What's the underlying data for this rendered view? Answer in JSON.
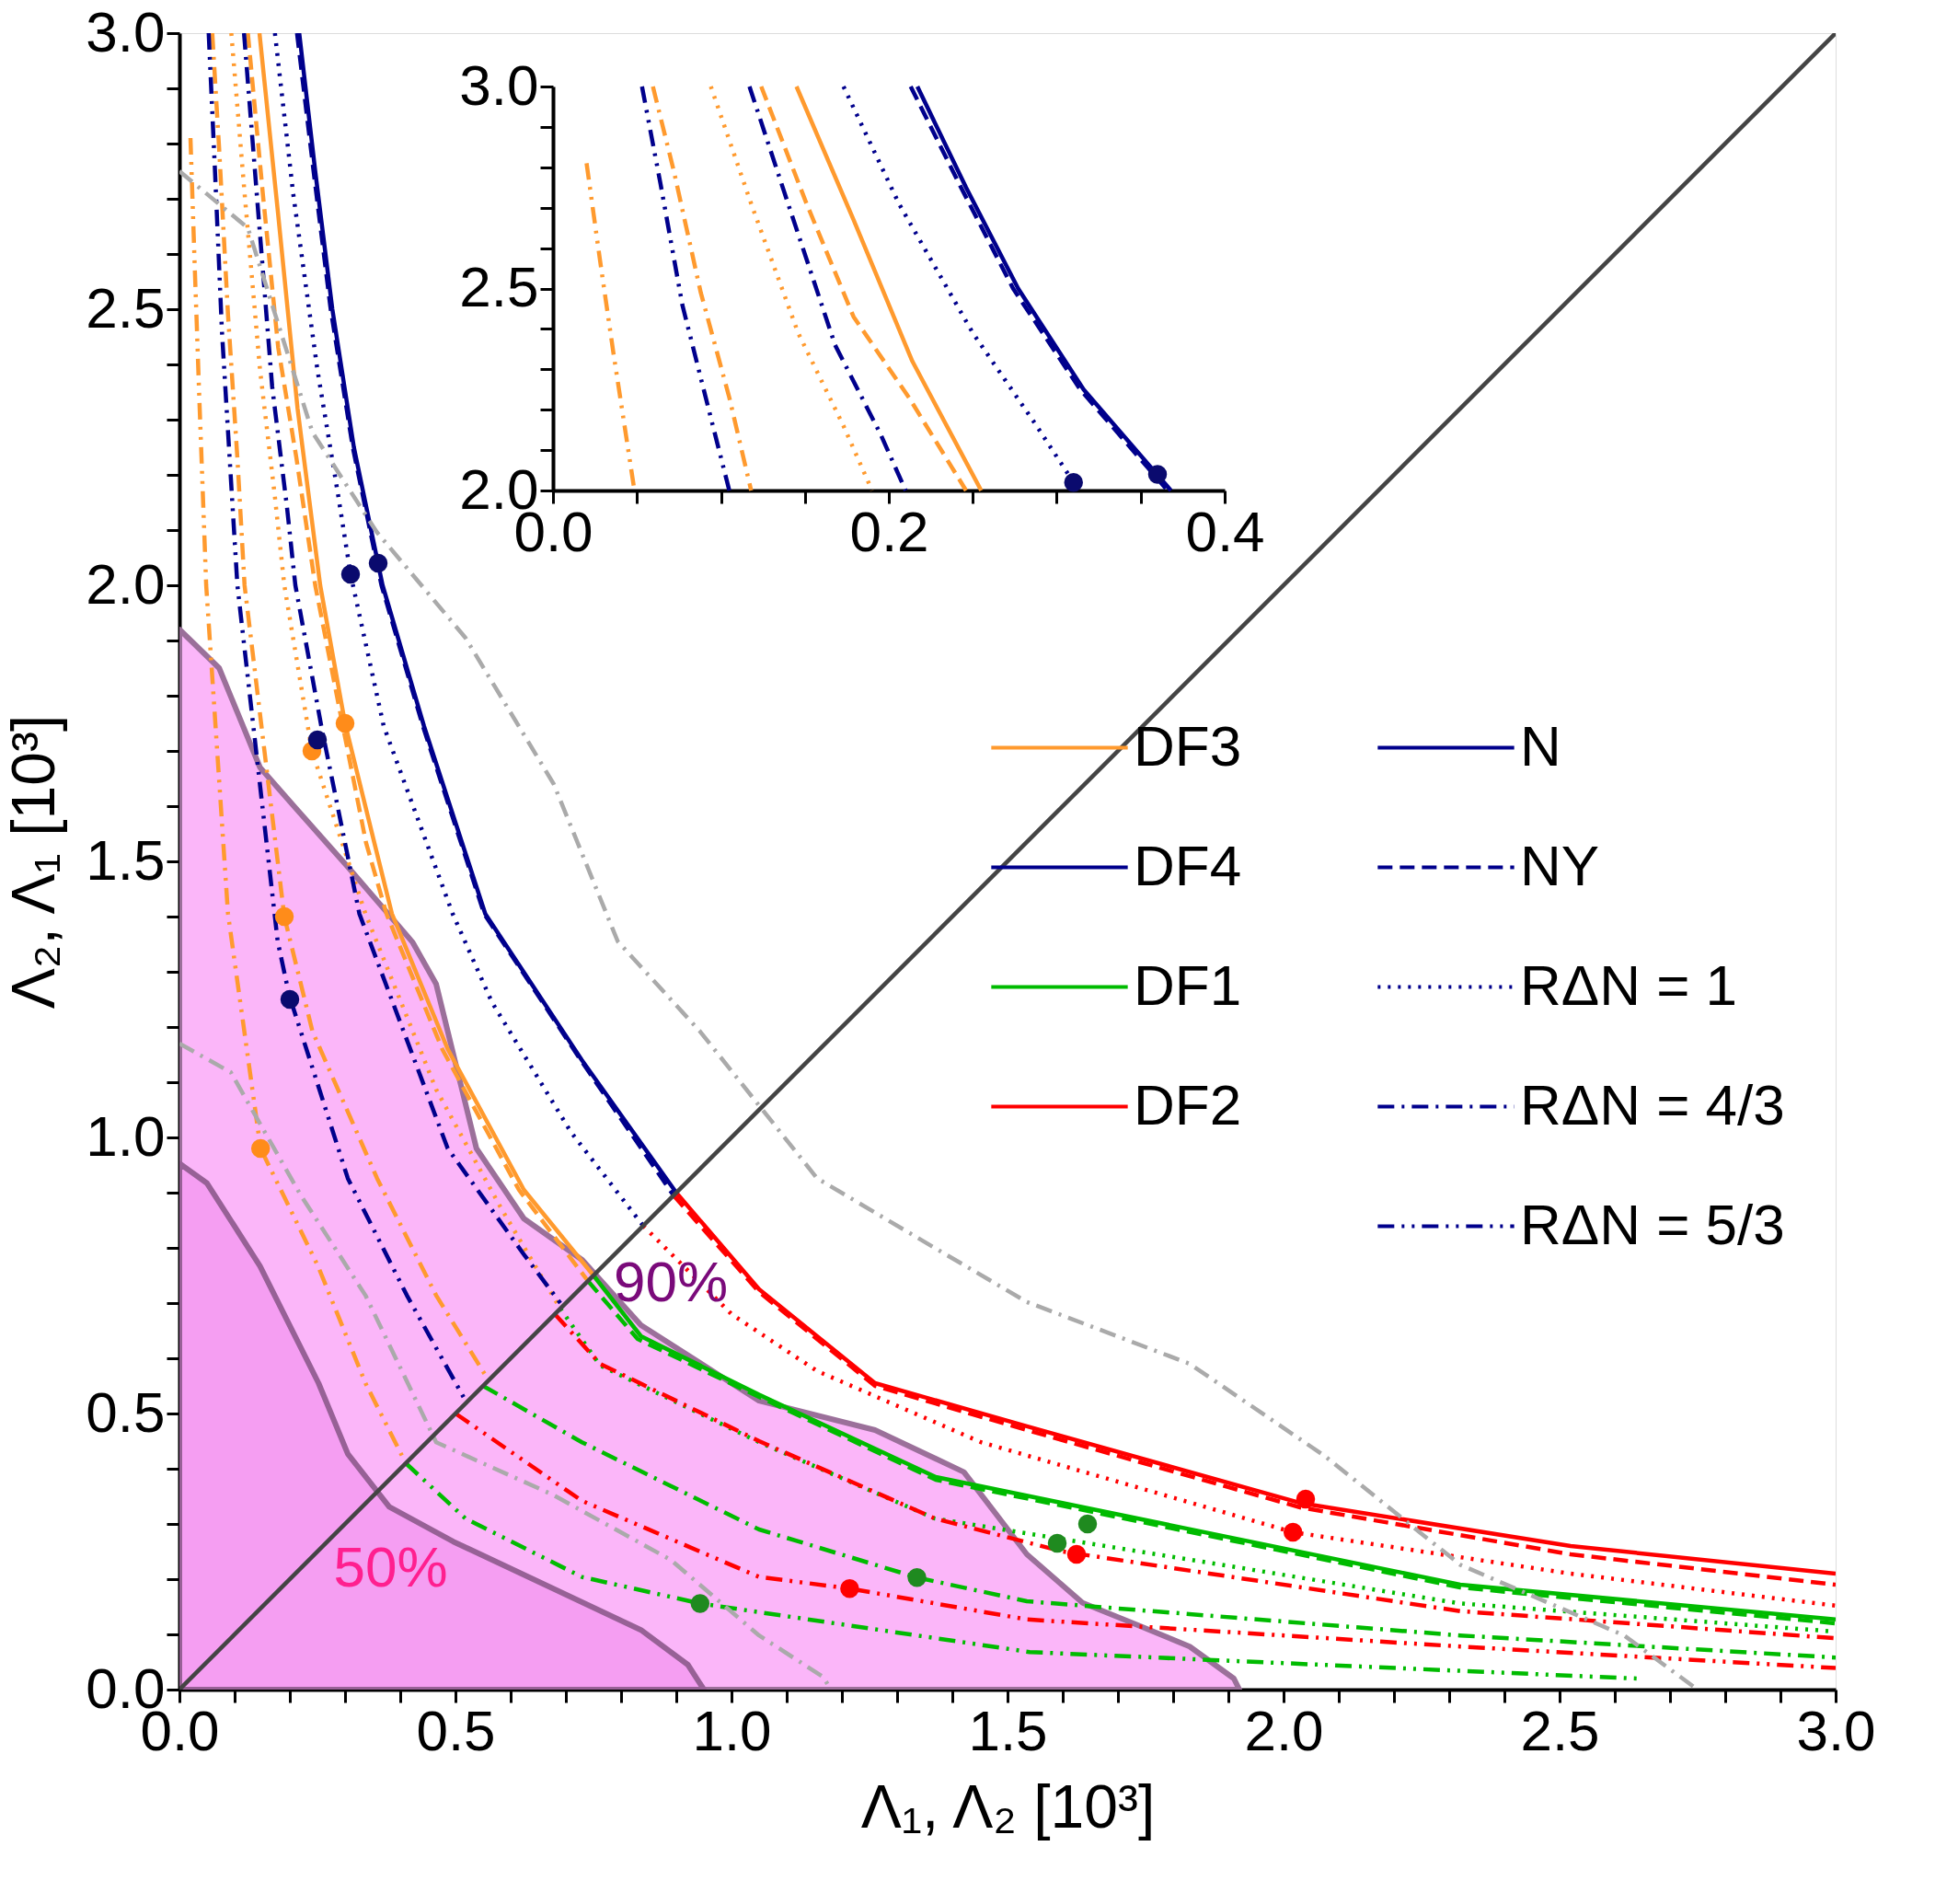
{
  "chart_data": [
    {
      "type": "line",
      "xlabel": "Λ₁, Λ₂ [10³]",
      "ylabel": "Λ₂, Λ₁ [10³]",
      "legend": "center",
      "xlim": [
        0,
        3
      ],
      "ylim": [
        0,
        3
      ],
      "xticks": [
        {
          "value": 0,
          "label": "0.0"
        },
        {
          "value": 0.1,
          "label": null
        },
        {
          "value": 0.2,
          "label": null
        },
        {
          "value": 0.3,
          "label": null
        },
        {
          "value": 0.4,
          "label": null
        },
        0.5,
        {
          "value": 0.6,
          "label": null
        },
        {
          "value": 0.7,
          "label": null
        },
        {
          "value": 0.8,
          "label": null
        },
        {
          "value": 0.9,
          "label": null
        },
        {
          "value": 1,
          "label": "1.0"
        },
        {
          "value": 1.1,
          "label": null
        },
        {
          "value": 1.2,
          "label": null
        },
        {
          "value": 1.3,
          "label": null
        },
        {
          "value": 1.4,
          "label": null
        },
        1.5,
        {
          "value": 1.6,
          "label": null
        },
        {
          "value": 1.7,
          "label": null
        },
        {
          "value": 1.8,
          "label": null
        },
        {
          "value": 1.9,
          "label": null
        },
        {
          "value": 2,
          "label": "2.0"
        },
        {
          "value": 2.1,
          "label": null
        },
        {
          "value": 2.2,
          "label": null
        },
        {
          "value": 2.3,
          "label": null
        },
        {
          "value": 2.4,
          "label": null
        },
        2.5,
        {
          "value": 2.6,
          "label": null
        },
        {
          "value": 2.7,
          "label": null
        },
        {
          "value": 2.8,
          "label": null
        },
        {
          "value": 2.9,
          "label": null
        },
        {
          "value": 3,
          "label": "3.0"
        }
      ],
      "yticks": [
        {
          "value": 0,
          "label": "0.0"
        },
        {
          "value": 0.1,
          "label": null
        },
        {
          "value": 0.2,
          "label": null
        },
        {
          "value": 0.3,
          "label": null
        },
        {
          "value": 0.4,
          "label": null
        },
        0.5,
        {
          "value": 0.6,
          "label": null
        },
        {
          "value": 0.7,
          "label": null
        },
        {
          "value": 0.8,
          "label": null
        },
        {
          "value": 0.9,
          "label": null
        },
        {
          "value": 1,
          "label": "1.0"
        },
        {
          "value": 1.1,
          "label": null
        },
        {
          "value": 1.2,
          "label": null
        },
        {
          "value": 1.3,
          "label": null
        },
        {
          "value": 1.4,
          "label": null
        },
        1.5,
        {
          "value": 1.6,
          "label": null
        },
        {
          "value": 1.7,
          "label": null
        },
        {
          "value": 1.8,
          "label": null
        },
        {
          "value": 1.9,
          "label": null
        },
        {
          "value": 2,
          "label": "2.0"
        },
        {
          "value": 2.1,
          "label": null
        },
        {
          "value": 2.2,
          "label": null
        },
        {
          "value": 2.3,
          "label": null
        },
        {
          "value": 2.4,
          "label": null
        },
        2.5,
        {
          "value": 2.6,
          "label": null
        },
        {
          "value": 2.7,
          "label": null
        },
        {
          "value": 2.8,
          "label": null
        },
        {
          "value": 2.9,
          "label": null
        },
        {
          "value": 3,
          "label": "3.0"
        }
      ],
      "annotations": [
        "N",
        "NY",
        "RΔN = 1",
        "RΔN = 4/3",
        "RΔN = 5/3",
        {
          "text": "90%",
          "x": 0.73,
          "y": 0.778
        },
        {
          "text": "50%",
          "x": 0.496,
          "y": 0.268
        }
      ],
      "series": [
        {
          "type": "area",
          "color": "#fbb6f9",
          "x": [
            0,
            0.072,
            0.146,
            0.21,
            0.305,
            0.422,
            0.465,
            0.538,
            0.624,
            0.73,
            0.836,
            1.05,
            1.26,
            1.421,
            1.535,
            1.636,
            1.733,
            1.83,
            1.91,
            1.92
          ],
          "values": [
            1.92,
            1.85,
            1.67,
            1.597,
            1.49,
            1.354,
            1.278,
            0.98,
            0.853,
            0.778,
            0.66,
            0.523,
            0.47,
            0.394,
            0.245,
            0.157,
            0.118,
            0.078,
            0.02,
            0
          ]
        },
        {
          "type": "area",
          "color": "#f59ef2",
          "x": [
            0,
            0.05,
            0.146,
            0.252,
            0.305,
            0.38,
            0.496,
            0.677,
            0.836,
            0.921,
            0.95
          ],
          "values": [
            0.953,
            0.917,
            0.767,
            0.555,
            0.427,
            0.331,
            0.268,
            0.183,
            0.108,
            0.045,
            0
          ]
        },
        {
          "name": "DF3",
          "color": "#ff9a2e",
          "line_style": "solid",
          "x": [
            0.145,
            0.179,
            0.214,
            0.255,
            0.3,
            0.353,
            0.385,
            0.486,
            0.624,
            0.75
          ],
          "values": [
            3.0,
            2.67,
            2.32,
            2.0,
            1.75,
            1.534,
            1.405,
            1.16,
            0.905,
            0.75
          ]
        },
        {
          "color": "#ff9a2e",
          "line_style": "dashed",
          "x": [
            0.124,
            0.151,
            0.179,
            0.212,
            0.246,
            0.295,
            0.338,
            0.375,
            0.476,
            0.615,
            0.74
          ],
          "values": [
            3.0,
            2.71,
            2.43,
            2.23,
            2.0,
            1.75,
            1.534,
            1.405,
            1.16,
            0.905,
            0.74
          ]
        },
        {
          "color": "#ff9a2e",
          "line_style": "dotted",
          "x": [
            0.094,
            0.118,
            0.146,
            0.173,
            0.19,
            0.24,
            0.337,
            0.465,
            0.582,
            0.69
          ],
          "values": [
            3.0,
            2.71,
            2.39,
            2.16,
            2.0,
            1.7,
            1.405,
            1.087,
            0.873,
            0.69
          ]
        },
        {
          "color": "#ff9a2e",
          "line_style": "dashdot",
          "x": [
            0.0595,
            0.072,
            0.088,
            0.105,
            0.118,
            0.19,
            0.241,
            0.358,
            0.465,
            0.56
          ],
          "values": [
            3.0,
            2.79,
            2.49,
            2.23,
            2.0,
            1.4,
            1.192,
            0.926,
            0.714,
            0.56
          ]
        },
        {
          "color": "#ff9a2e",
          "line_style": "dashdotdot",
          "x": [
            0.02,
            0.028,
            0.036,
            0.0485,
            0.088,
            0.147,
            0.251,
            0.337,
            0.41
          ],
          "values": [
            2.81,
            2.57,
            2.34,
            2.0,
            1.405,
            0.98,
            0.767,
            0.555,
            0.41
          ]
        },
        {
          "name": "DF4",
          "color": "#00008c",
          "line_style": "solid",
          "x": [
            0.217,
            0.246,
            0.277,
            0.316,
            0.368,
            0.443,
            0.554,
            0.729,
            0.9
          ],
          "values": [
            3.0,
            2.75,
            2.5,
            2.25,
            2.0,
            1.745,
            1.405,
            1.14,
            0.9
          ]
        },
        {
          "color": "#00008c",
          "line_style": "dashed",
          "x": [
            0.213,
            0.243,
            0.274,
            0.314,
            0.366,
            0.441,
            0.552,
            0.727,
            0.895
          ],
          "values": [
            3.0,
            2.75,
            2.5,
            2.25,
            2.0,
            1.745,
            1.405,
            1.14,
            0.895
          ]
        },
        {
          "color": "#00008c",
          "line_style": "dotted",
          "x": [
            0.173,
            0.206,
            0.25,
            0.288,
            0.31,
            0.37,
            0.495,
            0.566,
            0.709,
            0.84
          ],
          "values": [
            3.0,
            2.71,
            2.39,
            2.16,
            2.02,
            1.745,
            1.405,
            1.245,
            1.01,
            0.84
          ]
        },
        {
          "color": "#00008c",
          "line_style": "dashdot",
          "x": [
            0.117,
            0.14,
            0.168,
            0.195,
            0.21,
            0.257,
            0.326,
            0.486,
            0.624,
            0.69
          ],
          "values": [
            3.0,
            2.71,
            2.36,
            2.14,
            2.0,
            1.745,
            1.405,
            0.98,
            0.788,
            0.7
          ]
        },
        {
          "color": "#00008c",
          "line_style": "dashdotdot",
          "x": [
            0.053,
            0.064,
            0.077,
            0.094,
            0.105,
            0.178,
            0.199,
            0.305,
            0.412,
            0.52
          ],
          "values": [
            3.0,
            2.76,
            2.46,
            2.18,
            2.0,
            1.355,
            1.257,
            0.926,
            0.714,
            0.52
          ]
        },
        {
          "name": "DF1",
          "color": "#00bb00",
          "line_style": "solid",
          "x": [
            0.75,
            0.836,
            1.05,
            1.37,
            1.645,
            2.32,
            3.0
          ],
          "values": [
            0.75,
            0.64,
            0.534,
            0.385,
            null,
            0.19,
            0.127
          ]
        },
        {
          "color": "#00bb00",
          "line_style": "dashed",
          "x": [
            0.74,
            0.83,
            1.05,
            1.37,
            1.645,
            2.32,
            3.0
          ],
          "values": [
            0.74,
            0.635,
            0.53,
            0.38,
            null,
            0.185,
            0.12
          ]
        },
        {
          "color": "#00bb00",
          "line_style": "dotted",
          "x": [
            0.69,
            0.762,
            1.05,
            1.368,
            1.6,
            2.32,
            3.0
          ],
          "values": [
            0.69,
            0.587,
            0.448,
            0.31,
            null,
            0.156,
            0.105
          ]
        },
        {
          "color": "#00bb00",
          "line_style": "dashdot",
          "x": [
            0.55,
            0.729,
            1.05,
            1.336,
            1.535,
            2.32,
            3.0
          ],
          "values": [
            0.55,
            0.448,
            0.29,
            0.203,
            0.16,
            0.098,
            0.058
          ]
        },
        {
          "color": "#00bb00",
          "line_style": "dashdotdot",
          "x": [
            0.41,
            0.518,
            0.729,
            0.943,
            1.54,
            2.64
          ],
          "values": [
            0.41,
            0.31,
            0.204,
            0.156,
            0.068,
            0.02
          ]
        },
        {
          "name": "DF2",
          "color": "#ff0000",
          "line_style": "solid",
          "x": [
            0.9,
            1.05,
            1.26,
            1.535,
            2.03,
            2.52,
            3.0
          ],
          "values": [
            0.9,
            0.725,
            0.555,
            0.477,
            0.338,
            0.26,
            0.21
          ]
        },
        {
          "color": "#ff0000",
          "line_style": "dashed",
          "x": [
            0.895,
            1.05,
            1.26,
            1.535,
            2.03,
            2.52,
            3.0
          ],
          "values": [
            0.895,
            0.72,
            0.55,
            0.47,
            0.33,
            0.245,
            0.19
          ]
        },
        {
          "color": "#ff0000",
          "line_style": "dotted",
          "x": [
            0.84,
            1.0,
            1.155,
            1.452,
            2.017,
            2.52,
            3.0
          ],
          "values": [
            0.84,
            0.68,
            0.577,
            0.448,
            0.285,
            0.21,
            0.152
          ]
        },
        {
          "color": "#ff0000",
          "line_style": "dashdot",
          "x": [
            0.68,
            0.762,
            1.05,
            1.368,
            1.6,
            2.32,
            3.0
          ],
          "values": [
            0.68,
            0.59,
            0.45,
            0.31,
            0.25,
            0.142,
            0.093
          ]
        },
        {
          "color": "#ff0000",
          "line_style": "dashdotdot",
          "x": [
            0.5,
            0.729,
            1.05,
            1.214,
            1.535,
            2.32,
            3.0
          ],
          "values": [
            0.5,
            0.342,
            0.204,
            0.183,
            0.127,
            0.078,
            0.039
          ]
        },
        {
          "color": "#aaaaaa",
          "line_style": "dashdot",
          "x": [
            0,
            0.124,
            0.241,
            0.357,
            0.518,
            0.678,
            0.794,
            0.943,
            1.155,
            1.368,
            1.535,
            1.83,
            2.076,
            2.32,
            2.617,
            2.75
          ],
          "values": [
            2.75,
            2.647,
            2.277,
            2.097,
            1.905,
            1.64,
            1.355,
            1.192,
            0.926,
            0.8,
            0.702,
            0.59,
            0.422,
            0.226,
            0.098,
            0
          ]
        },
        {
          "color": "#aaaaaa",
          "line_style": "dashdot",
          "x": [
            0,
            0.093,
            0.22,
            0.337,
            0.465,
            0.676,
            0.89,
            1.05,
            1.166,
            1.18
          ],
          "values": [
            1.17,
            1.118,
            0.895,
            0.714,
            0.448,
            0.353,
            0.235,
            0.098,
            0.023,
            0
          ]
        },
        {
          "color": "#444444",
          "line_style": "solid",
          "x": [
            0,
            3
          ],
          "values": [
            0,
            3
          ]
        },
        {
          "type": "scatter",
          "marker": "circle",
          "color": "#ff8c1a",
          "x": [
            0.3,
            0.24,
            0.19,
            0.147
          ],
          "values": [
            1.75,
            1.7,
            1.4,
            0.98
          ]
        },
        {
          "type": "scatter",
          "marker": "circle",
          "color": "#0a0a6e",
          "x": [
            0.36,
            0.31,
            0.25,
            0.2
          ],
          "values": [
            2.04,
            2.02,
            1.72,
            1.25
          ]
        },
        {
          "type": "scatter",
          "marker": "circle",
          "color": "#1f8a1f",
          "x": [
            1.645,
            1.59,
            1.336,
            0.943
          ],
          "values": [
            0.3,
            0.265,
            0.203,
            0.156
          ]
        },
        {
          "type": "scatter",
          "marker": "circle",
          "color": "#ff0000",
          "x": [
            2.04,
            2.017,
            1.625,
            1.214
          ],
          "values": [
            0.345,
            0.285,
            0.245,
            0.183
          ]
        }
      ]
    },
    {
      "type": "line",
      "xlim": [
        0,
        0.4
      ],
      "ylim": [
        2,
        3
      ],
      "xticks": [
        {
          "value": 0,
          "label": "0.0"
        },
        {
          "value": 0.05,
          "label": null
        },
        {
          "value": 0.1,
          "label": null
        },
        {
          "value": 0.15,
          "label": null
        },
        0.2,
        {
          "value": 0.25,
          "label": null
        },
        {
          "value": 0.3,
          "label": null
        },
        {
          "value": 0.35,
          "label": null
        },
        0.4
      ],
      "yticks": [
        {
          "value": 2,
          "label": "2.0"
        },
        {
          "value": 2.1,
          "label": null
        },
        {
          "value": 2.2,
          "label": null
        },
        {
          "value": 2.3,
          "label": null
        },
        {
          "value": 2.4,
          "label": null
        },
        2.5,
        {
          "value": 2.6,
          "label": null
        },
        {
          "value": 2.7,
          "label": null
        },
        {
          "value": 2.8,
          "label": null
        },
        {
          "value": 2.9,
          "label": null
        },
        {
          "value": 3,
          "label": "3.0"
        }
      ],
      "series": [
        {
          "name": "DF3",
          "color": "#ff9a2e",
          "line_style": "solid",
          "x": [
            0.145,
            0.179,
            0.214,
            0.255
          ],
          "values": [
            3.0,
            2.67,
            2.32,
            2.0
          ]
        },
        {
          "color": "#ff9a2e",
          "line_style": "dashed",
          "x": [
            0.124,
            0.151,
            0.179,
            0.212,
            0.246
          ],
          "values": [
            3.0,
            2.71,
            2.43,
            2.23,
            2.0
          ]
        },
        {
          "color": "#ff9a2e",
          "line_style": "dotted",
          "x": [
            0.094,
            0.118,
            0.146,
            0.173,
            0.19
          ],
          "values": [
            3.0,
            2.71,
            2.39,
            2.16,
            2.0
          ]
        },
        {
          "color": "#ff9a2e",
          "line_style": "dashdot",
          "x": [
            0.0595,
            0.072,
            0.088,
            0.105,
            0.118
          ],
          "values": [
            3.0,
            2.79,
            2.49,
            2.23,
            2.0
          ]
        },
        {
          "color": "#ff9a2e",
          "line_style": "dashdotdot",
          "x": [
            0.02,
            0.028,
            0.036,
            0.0485
          ],
          "values": [
            2.81,
            2.57,
            2.34,
            2.0
          ]
        },
        {
          "name": "DF4",
          "color": "#00008c",
          "line_style": "solid",
          "x": [
            0.217,
            0.246,
            0.277,
            0.316,
            0.368
          ],
          "values": [
            3.0,
            2.75,
            2.5,
            2.25,
            2.0
          ]
        },
        {
          "color": "#00008c",
          "line_style": "dashed",
          "x": [
            0.213,
            0.243,
            0.274,
            0.314,
            0.366
          ],
          "values": [
            3.0,
            2.75,
            2.5,
            2.25,
            2.0
          ]
        },
        {
          "color": "#00008c",
          "line_style": "dotted",
          "x": [
            0.173,
            0.206,
            0.25,
            0.288,
            0.31
          ],
          "values": [
            3.0,
            2.71,
            2.39,
            2.16,
            2.02
          ]
        },
        {
          "color": "#00008c",
          "line_style": "dashdot",
          "x": [
            0.117,
            0.14,
            0.168,
            0.195,
            0.21
          ],
          "values": [
            3.0,
            2.71,
            2.36,
            2.14,
            2.0
          ]
        },
        {
          "color": "#00008c",
          "line_style": "dashdotdot",
          "x": [
            0.053,
            0.064,
            0.077,
            0.094,
            0.105
          ],
          "values": [
            3.0,
            2.76,
            2.46,
            2.18,
            2.0
          ]
        },
        {
          "type": "scatter",
          "marker": "circle",
          "color": "#0a0a6e",
          "x": [
            0.36,
            0.31
          ],
          "values": [
            2.04,
            2.02
          ]
        }
      ]
    }
  ]
}
